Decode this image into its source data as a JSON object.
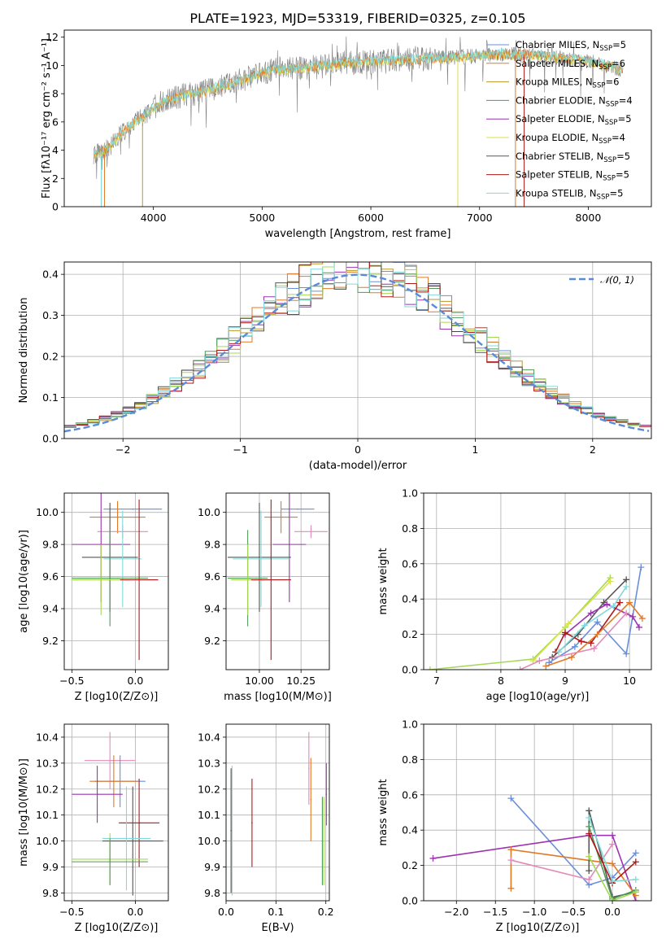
{
  "figure": {
    "title": "PLATE=1923, MJD=53319, FIBERID=0325, z=0.105"
  },
  "colors": {
    "Chabrier MILES": "#6a8fd8",
    "Salpeter MILES": "#e07a28",
    "Kroupa MILES": "#b8982a",
    "Chabrier ELODIE": "#4f9a5a",
    "Salpeter ELODIE": "#9c33b0",
    "Kroupa ELODIE": "#d8e24a",
    "Chabrier STELIB": "#555555",
    "Salpeter STELIB": "#b01a1a",
    "Kroupa STELIB": "#80dada",
    "pink": "#e28ab8",
    "lime": "#a6d854",
    "data": "#808080",
    "normal": "#5b8bd8"
  },
  "chart_data": [
    {
      "id": "spectrum",
      "type": "line",
      "xlabel": "wavelength [Angstrom, rest frame]",
      "ylabel": "Flux [fλ10⁻¹⁷ erg cm⁻² s⁻¹ A⁻¹]",
      "xlim": [
        3180,
        8580
      ],
      "ylim": [
        0,
        12.5
      ],
      "xticks": [
        4000,
        5000,
        6000,
        7000,
        8000
      ],
      "yticks": [
        0,
        2,
        4,
        6,
        8,
        10,
        12
      ],
      "legend_placement": "right",
      "legend": [
        {
          "name": "Chabrier MILES",
          "label": "Chabrier MILES, N_SSP=5"
        },
        {
          "name": "Salpeter MILES",
          "label": "Salpeter MILES, N_SSP=6"
        },
        {
          "name": "Kroupa MILES",
          "label": "Kroupa MILES, N_SSP=6"
        },
        {
          "name": "Chabrier ELODIE",
          "label": "Chabrier ELODIE, N_SSP=4"
        },
        {
          "name": "Salpeter ELODIE",
          "label": "Salpeter ELODIE, N_SSP=5"
        },
        {
          "name": "Kroupa ELODIE",
          "label": "Kroupa ELODIE, N_SSP=4"
        },
        {
          "name": "Chabrier STELIB",
          "label": "Chabrier STELIB, N_SSP=5"
        },
        {
          "name": "Salpeter STELIB",
          "label": "Salpeter STELIB, N_SSP=5"
        },
        {
          "name": "Kroupa STELIB",
          "label": "Kroupa STELIB, N_SSP=5"
        }
      ],
      "continuum": {
        "x": [
          3450,
          3600,
          3700,
          3800,
          3900,
          4000,
          4100,
          4300,
          4500,
          4700,
          4900,
          5100,
          5300,
          5500,
          5800,
          6100,
          6400,
          6800,
          7200,
          7600,
          8000,
          8320
        ],
        "y": [
          3.7,
          4.2,
          5.2,
          5.8,
          6.3,
          7.0,
          7.5,
          7.9,
          8.2,
          8.7,
          9.2,
          9.7,
          9.8,
          9.9,
          10.2,
          10.3,
          10.4,
          10.6,
          10.8,
          10.7,
          10.3,
          9.7
        ]
      }
    },
    {
      "id": "residuals",
      "type": "bar",
      "xlabel": "(data-model)/error",
      "ylabel": "Normed distribution",
      "xlim": [
        -2.5,
        2.5
      ],
      "ylim": [
        0,
        0.43
      ],
      "xticks": [
        -2,
        -1,
        0,
        1,
        2
      ],
      "yticks": [
        0.0,
        0.1,
        0.2,
        0.3,
        0.4
      ],
      "legend": "𝒩(0, 1)",
      "legend_placement": "top-right",
      "grid": true
    },
    {
      "id": "age-vs-Z",
      "type": "scatter",
      "xlabel": "Z [log10(Z/Z⊙)]",
      "ylabel": "age  [log10(age/yr)]",
      "xlim": [
        -0.56,
        0.26
      ],
      "ylim": [
        9.02,
        10.12
      ],
      "xticks": [
        -0.5,
        0.0
      ],
      "yticks": [
        9.2,
        9.4,
        9.6,
        9.8,
        10.0
      ],
      "grid": true,
      "points": [
        {
          "c": "Chabrier MILES",
          "x": -0.02,
          "xerr": 0.23,
          "y": 10.02,
          "yerr": 0
        },
        {
          "c": "Salpeter MILES",
          "x": -0.14,
          "xerr": 0.22,
          "y": 9.97,
          "yerr": 0.1
        },
        {
          "c": "pink",
          "x": -0.1,
          "xerr": 0.2,
          "y": 9.88,
          "yerr": 0.04
        },
        {
          "c": "Salpeter ELODIE",
          "x": -0.27,
          "xerr": 0.23,
          "y": 9.8,
          "yerr": 0.36
        },
        {
          "c": "Chabrier STELIB",
          "x": -0.2,
          "xerr": 0.22,
          "y": 9.72,
          "yerr": 0.34
        },
        {
          "c": "Kroupa STELIB",
          "x": -0.1,
          "xerr": 0.15,
          "y": 9.71,
          "yerr": 0.3
        },
        {
          "c": "Chabrier ELODIE",
          "x": -0.2,
          "xerr": 0.3,
          "y": 9.59,
          "yerr": 0.3
        },
        {
          "c": "lime",
          "x": -0.27,
          "xerr": 0.23,
          "y": 9.58,
          "yerr": 0.22
        },
        {
          "c": "Salpeter STELIB",
          "x": 0.03,
          "xerr": 0.15,
          "y": 9.58,
          "yerr": 0.5
        }
      ]
    },
    {
      "id": "age-vs-mass",
      "type": "scatter",
      "xlabel": "mass [log10(M/M⊙)]",
      "ylabel": "",
      "xlim": [
        9.8,
        10.42
      ],
      "ylim": [
        9.02,
        10.12
      ],
      "xticks": [
        10.0,
        10.25
      ],
      "yticks": [
        9.2,
        9.4,
        9.6,
        9.8,
        10.0
      ],
      "grid": true,
      "points": [
        {
          "c": "Chabrier MILES",
          "x": 10.23,
          "xerr": 0.1,
          "y": 10.02,
          "yerr": 0
        },
        {
          "c": "Salpeter MILES",
          "x": 10.13,
          "xerr": 0.1,
          "y": 9.97,
          "yerr": 0.1
        },
        {
          "c": "pink",
          "x": 10.31,
          "xerr": 0.1,
          "y": 9.88,
          "yerr": 0.04
        },
        {
          "c": "Salpeter ELODIE",
          "x": 10.18,
          "xerr": 0.1,
          "y": 9.8,
          "yerr": 0.36
        },
        {
          "c": "Chabrier STELIB",
          "x": 10.0,
          "xerr": 0.19,
          "y": 9.72,
          "yerr": 0.34
        },
        {
          "c": "Kroupa STELIB",
          "x": 10.01,
          "xerr": 0.17,
          "y": 9.71,
          "yerr": 0.3
        },
        {
          "c": "Chabrier ELODIE",
          "x": 9.93,
          "xerr": 0.12,
          "y": 9.59,
          "yerr": 0.3
        },
        {
          "c": "lime",
          "x": 9.93,
          "xerr": 0.1,
          "y": 9.58,
          "yerr": 0.22
        },
        {
          "c": "Salpeter STELIB",
          "x": 10.07,
          "xerr": 0.12,
          "y": 9.58,
          "yerr": 0.5
        }
      ]
    },
    {
      "id": "weight-vs-age",
      "type": "line",
      "xlabel": "age  [log10(age/yr)]",
      "ylabel": "mass weight",
      "xlim": [
        6.8,
        10.34
      ],
      "ylim": [
        0,
        1.0
      ],
      "xticks": [
        7,
        8,
        9,
        10
      ],
      "yticks": [
        0.0,
        0.2,
        0.4,
        0.6,
        0.8,
        1.0
      ],
      "grid": true,
      "series": [
        {
          "c": "lime",
          "x": [
            6.9,
            8.5,
            9.0,
            9.7
          ],
          "y": [
            0.0,
            0.06,
            0.24,
            0.52
          ]
        },
        {
          "c": "Kroupa ELODIE",
          "x": [
            8.5,
            9.05,
            9.7
          ],
          "y": [
            0.05,
            0.26,
            0.5
          ]
        },
        {
          "c": "Chabrier STELIB",
          "x": [
            8.8,
            9.2,
            9.6,
            9.95
          ],
          "y": [
            0.07,
            0.2,
            0.38,
            0.51
          ]
        },
        {
          "c": "Chabrier MILES",
          "x": [
            8.75,
            9.15,
            9.5,
            9.95,
            10.18
          ],
          "y": [
            0.04,
            0.13,
            0.27,
            0.09,
            0.58
          ]
        },
        {
          "c": "Salpeter ELODIE",
          "x": [
            9.0,
            9.4,
            9.65,
            10.05,
            10.15
          ],
          "y": [
            0.2,
            0.32,
            0.37,
            0.3,
            0.24
          ]
        },
        {
          "c": "Salpeter STELIB",
          "x": [
            8.85,
            9.0,
            9.25,
            9.4,
            9.85
          ],
          "y": [
            0.1,
            0.21,
            0.16,
            0.15,
            0.38
          ]
        },
        {
          "c": "Salpeter MILES",
          "x": [
            8.7,
            9.1,
            9.5,
            10.0,
            10.2
          ],
          "y": [
            0.02,
            0.07,
            0.2,
            0.38,
            0.29
          ]
        },
        {
          "c": "Kroupa STELIB",
          "x": [
            8.9,
            9.3,
            9.75,
            9.95
          ],
          "y": [
            0.1,
            0.25,
            0.36,
            0.47
          ]
        },
        {
          "c": "pink",
          "x": [
            8.3,
            8.6,
            9.45,
            9.95
          ],
          "y": [
            0.0,
            0.05,
            0.12,
            0.32
          ]
        }
      ]
    },
    {
      "id": "mass-vs-Z",
      "type": "scatter",
      "xlabel": "Z [log10(Z/Z⊙)]",
      "ylabel": "mass [log10(M/M⊙)]",
      "xlim": [
        -0.56,
        0.26
      ],
      "ylim": [
        9.77,
        10.45
      ],
      "xticks": [
        -0.5,
        0.0
      ],
      "yticks": [
        9.8,
        9.9,
        10.0,
        10.1,
        10.2,
        10.3,
        10.4
      ],
      "grid": true,
      "points": [
        {
          "c": "pink",
          "x": -0.2,
          "xerr": 0.2,
          "y": 10.31,
          "yerr": 0.11
        },
        {
          "c": "Chabrier MILES",
          "x": -0.12,
          "xerr": 0.2,
          "y": 10.23,
          "yerr": 0.1
        },
        {
          "c": "Salpeter MILES",
          "x": -0.17,
          "xerr": 0.19,
          "y": 10.23,
          "yerr": 0.1
        },
        {
          "c": "Salpeter ELODIE",
          "x": -0.3,
          "xerr": 0.2,
          "y": 10.18,
          "yerr": 0.11
        },
        {
          "c": "Salpeter STELIB",
          "x": 0.03,
          "xerr": 0.16,
          "y": 10.07,
          "yerr": 0.17
        },
        {
          "c": "Chabrier STELIB",
          "x": -0.02,
          "xerr": 0.24,
          "y": 10.0,
          "yerr": 0.21
        },
        {
          "c": "Kroupa STELIB",
          "x": -0.07,
          "xerr": 0.19,
          "y": 10.01,
          "yerr": 0.2
        },
        {
          "c": "lime",
          "x": -0.2,
          "xerr": 0.3,
          "y": 9.93,
          "yerr": 0.1
        },
        {
          "c": "Chabrier ELODIE",
          "x": -0.2,
          "xerr": 0.3,
          "y": 9.92,
          "yerr": 0.09
        }
      ]
    },
    {
      "id": "mass-vs-EBV",
      "type": "scatter",
      "xlabel": "E(B-V)",
      "ylabel": "",
      "xlim": [
        0.0,
        0.207
      ],
      "ylim": [
        9.77,
        10.45
      ],
      "xticks": [
        0.0,
        0.1,
        0.2
      ],
      "yticks": [
        9.8,
        9.9,
        10.0,
        10.1,
        10.2,
        10.3,
        10.4
      ],
      "grid": true,
      "points": [
        {
          "c": "Kroupa STELIB",
          "x": 0.012,
          "y": 10.04,
          "yerr": 0.25
        },
        {
          "c": "Chabrier STELIB",
          "x": 0.01,
          "y": 10.04,
          "yerr": 0.24
        },
        {
          "c": "Salpeter STELIB",
          "x": 0.052,
          "y": 10.07,
          "yerr": 0.17
        },
        {
          "c": "pink",
          "x": 0.166,
          "y": 10.28,
          "yerr": 0.14
        },
        {
          "c": "Salpeter MILES",
          "x": 0.17,
          "y": 10.16,
          "yerr": 0.16
        },
        {
          "c": "Chabrier ELODIE",
          "x": 0.193,
          "y": 10.0,
          "yerr": 0.17
        },
        {
          "c": "lime",
          "x": 0.196,
          "y": 10.0,
          "yerr": 0.17
        },
        {
          "c": "Salpeter ELODIE",
          "x": 0.201,
          "y": 10.18,
          "yerr": 0.12
        }
      ]
    },
    {
      "id": "weight-vs-Z",
      "type": "line",
      "xlabel": "Z [log10(Z/Z⊙)]",
      "ylabel": "mass weight",
      "xlim": [
        -2.42,
        0.5
      ],
      "ylim": [
        0,
        1.0
      ],
      "xticks": [
        -2.0,
        -1.5,
        -1.0,
        -0.5,
        0.0
      ],
      "yticks": [
        0.0,
        0.2,
        0.4,
        0.6,
        0.8,
        1.0
      ],
      "grid": true,
      "series": [
        {
          "c": "Chabrier MILES",
          "x": [
            -1.3,
            -0.3,
            0.0,
            0.3
          ],
          "y": [
            0.58,
            0.09,
            0.13,
            0.27
          ]
        },
        {
          "c": "Salpeter ELODIE",
          "x": [
            -2.3,
            -0.3,
            0.0,
            0.3
          ],
          "y": [
            0.24,
            0.37,
            0.37,
            0.0
          ]
        },
        {
          "c": "Salpeter MILES",
          "x": [
            -1.3,
            -1.3,
            0.0,
            0.3
          ],
          "y": [
            0.07,
            0.29,
            0.21,
            0.03
          ]
        },
        {
          "c": "pink",
          "x": [
            -1.3,
            -0.3,
            0.0
          ],
          "y": [
            0.23,
            0.12,
            0.32
          ]
        },
        {
          "c": "Chabrier STELIB",
          "x": [
            -0.3,
            -0.3,
            0.0,
            0.3
          ],
          "y": [
            0.17,
            0.51,
            0.02,
            0.05
          ]
        },
        {
          "c": "Chabrier ELODIE",
          "x": [
            -0.3,
            0.0,
            0.3
          ],
          "y": [
            0.42,
            0.01,
            0.06
          ]
        },
        {
          "c": "Salpeter STELIB",
          "x": [
            -0.3,
            0.0,
            0.3
          ],
          "y": [
            0.38,
            0.1,
            0.22
          ]
        },
        {
          "c": "Kroupa STELIB",
          "x": [
            -0.3,
            0.0,
            0.3
          ],
          "y": [
            0.47,
            0.11,
            0.12
          ]
        },
        {
          "c": "lime",
          "x": [
            -0.3,
            0.0,
            0.3
          ],
          "y": [
            0.25,
            0.0,
            0.05
          ]
        }
      ]
    }
  ]
}
